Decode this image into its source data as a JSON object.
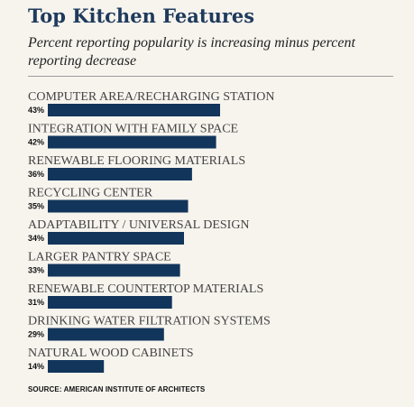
{
  "header": {
    "title": "Top Kitchen Features",
    "subtitle": "Percent reporting popularity is increasing minus percent reporting decrease"
  },
  "footer": {
    "source": "SOURCE: AMERICAN INSTITUTE OF ARCHITECTS"
  },
  "colors": {
    "bar": "#12355b",
    "label": "#444444",
    "value": "#111111"
  },
  "chart_data": {
    "type": "bar",
    "orientation": "horizontal",
    "title": "Top Kitchen Features",
    "subtitle": "Percent reporting popularity is increasing minus percent reporting decrease",
    "categories": [
      "COMPUTER AREA/RECHARGING STATION",
      "INTEGRATION WITH FAMILY SPACE",
      "RENEWABLE FLOORING MATERIALS",
      "RECYCLING CENTER",
      "ADAPTABILITY / UNIVERSAL DESIGN",
      "LARGER PANTRY SPACE",
      "RENEWABLE COUNTERTOP MATERIALS",
      "DRINKING WATER FILTRATION SYSTEMS",
      "NATURAL WOOD CABINETS"
    ],
    "values": [
      43,
      42,
      36,
      35,
      34,
      33,
      31,
      29,
      14
    ],
    "value_labels": [
      "43%",
      "42%",
      "36%",
      "35%",
      "34%",
      "33%",
      "31%",
      "29%",
      "14%"
    ],
    "unit": "%",
    "grid": false,
    "legend": false
  }
}
